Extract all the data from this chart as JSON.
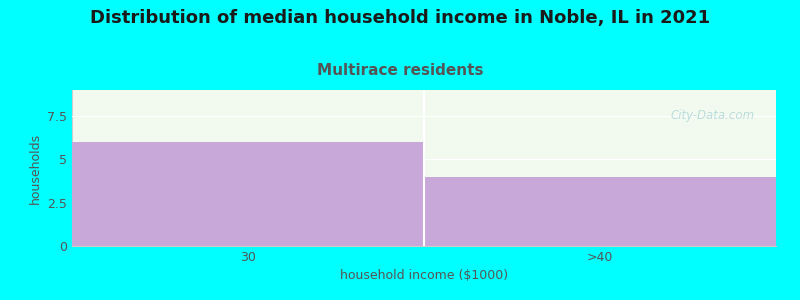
{
  "title": "Distribution of median household income in Noble, IL in 2021",
  "subtitle": "Multirace residents",
  "subtitle_color": "#555555",
  "categories": [
    "30",
    ">40"
  ],
  "values": [
    6,
    4
  ],
  "bar_color": "#c8a8d8",
  "plot_bg": "#f2faf0",
  "background_color": "#00ffff",
  "xlabel": "household income ($1000)",
  "ylabel": "households",
  "ylim": [
    0,
    9
  ],
  "yticks": [
    0,
    2.5,
    5,
    7.5
  ],
  "title_fontsize": 13,
  "subtitle_fontsize": 11,
  "label_fontsize": 9,
  "tick_fontsize": 9,
  "watermark": "City-Data.com",
  "watermark_color": "#b0d8d8",
  "divider_color": "#ffffff"
}
